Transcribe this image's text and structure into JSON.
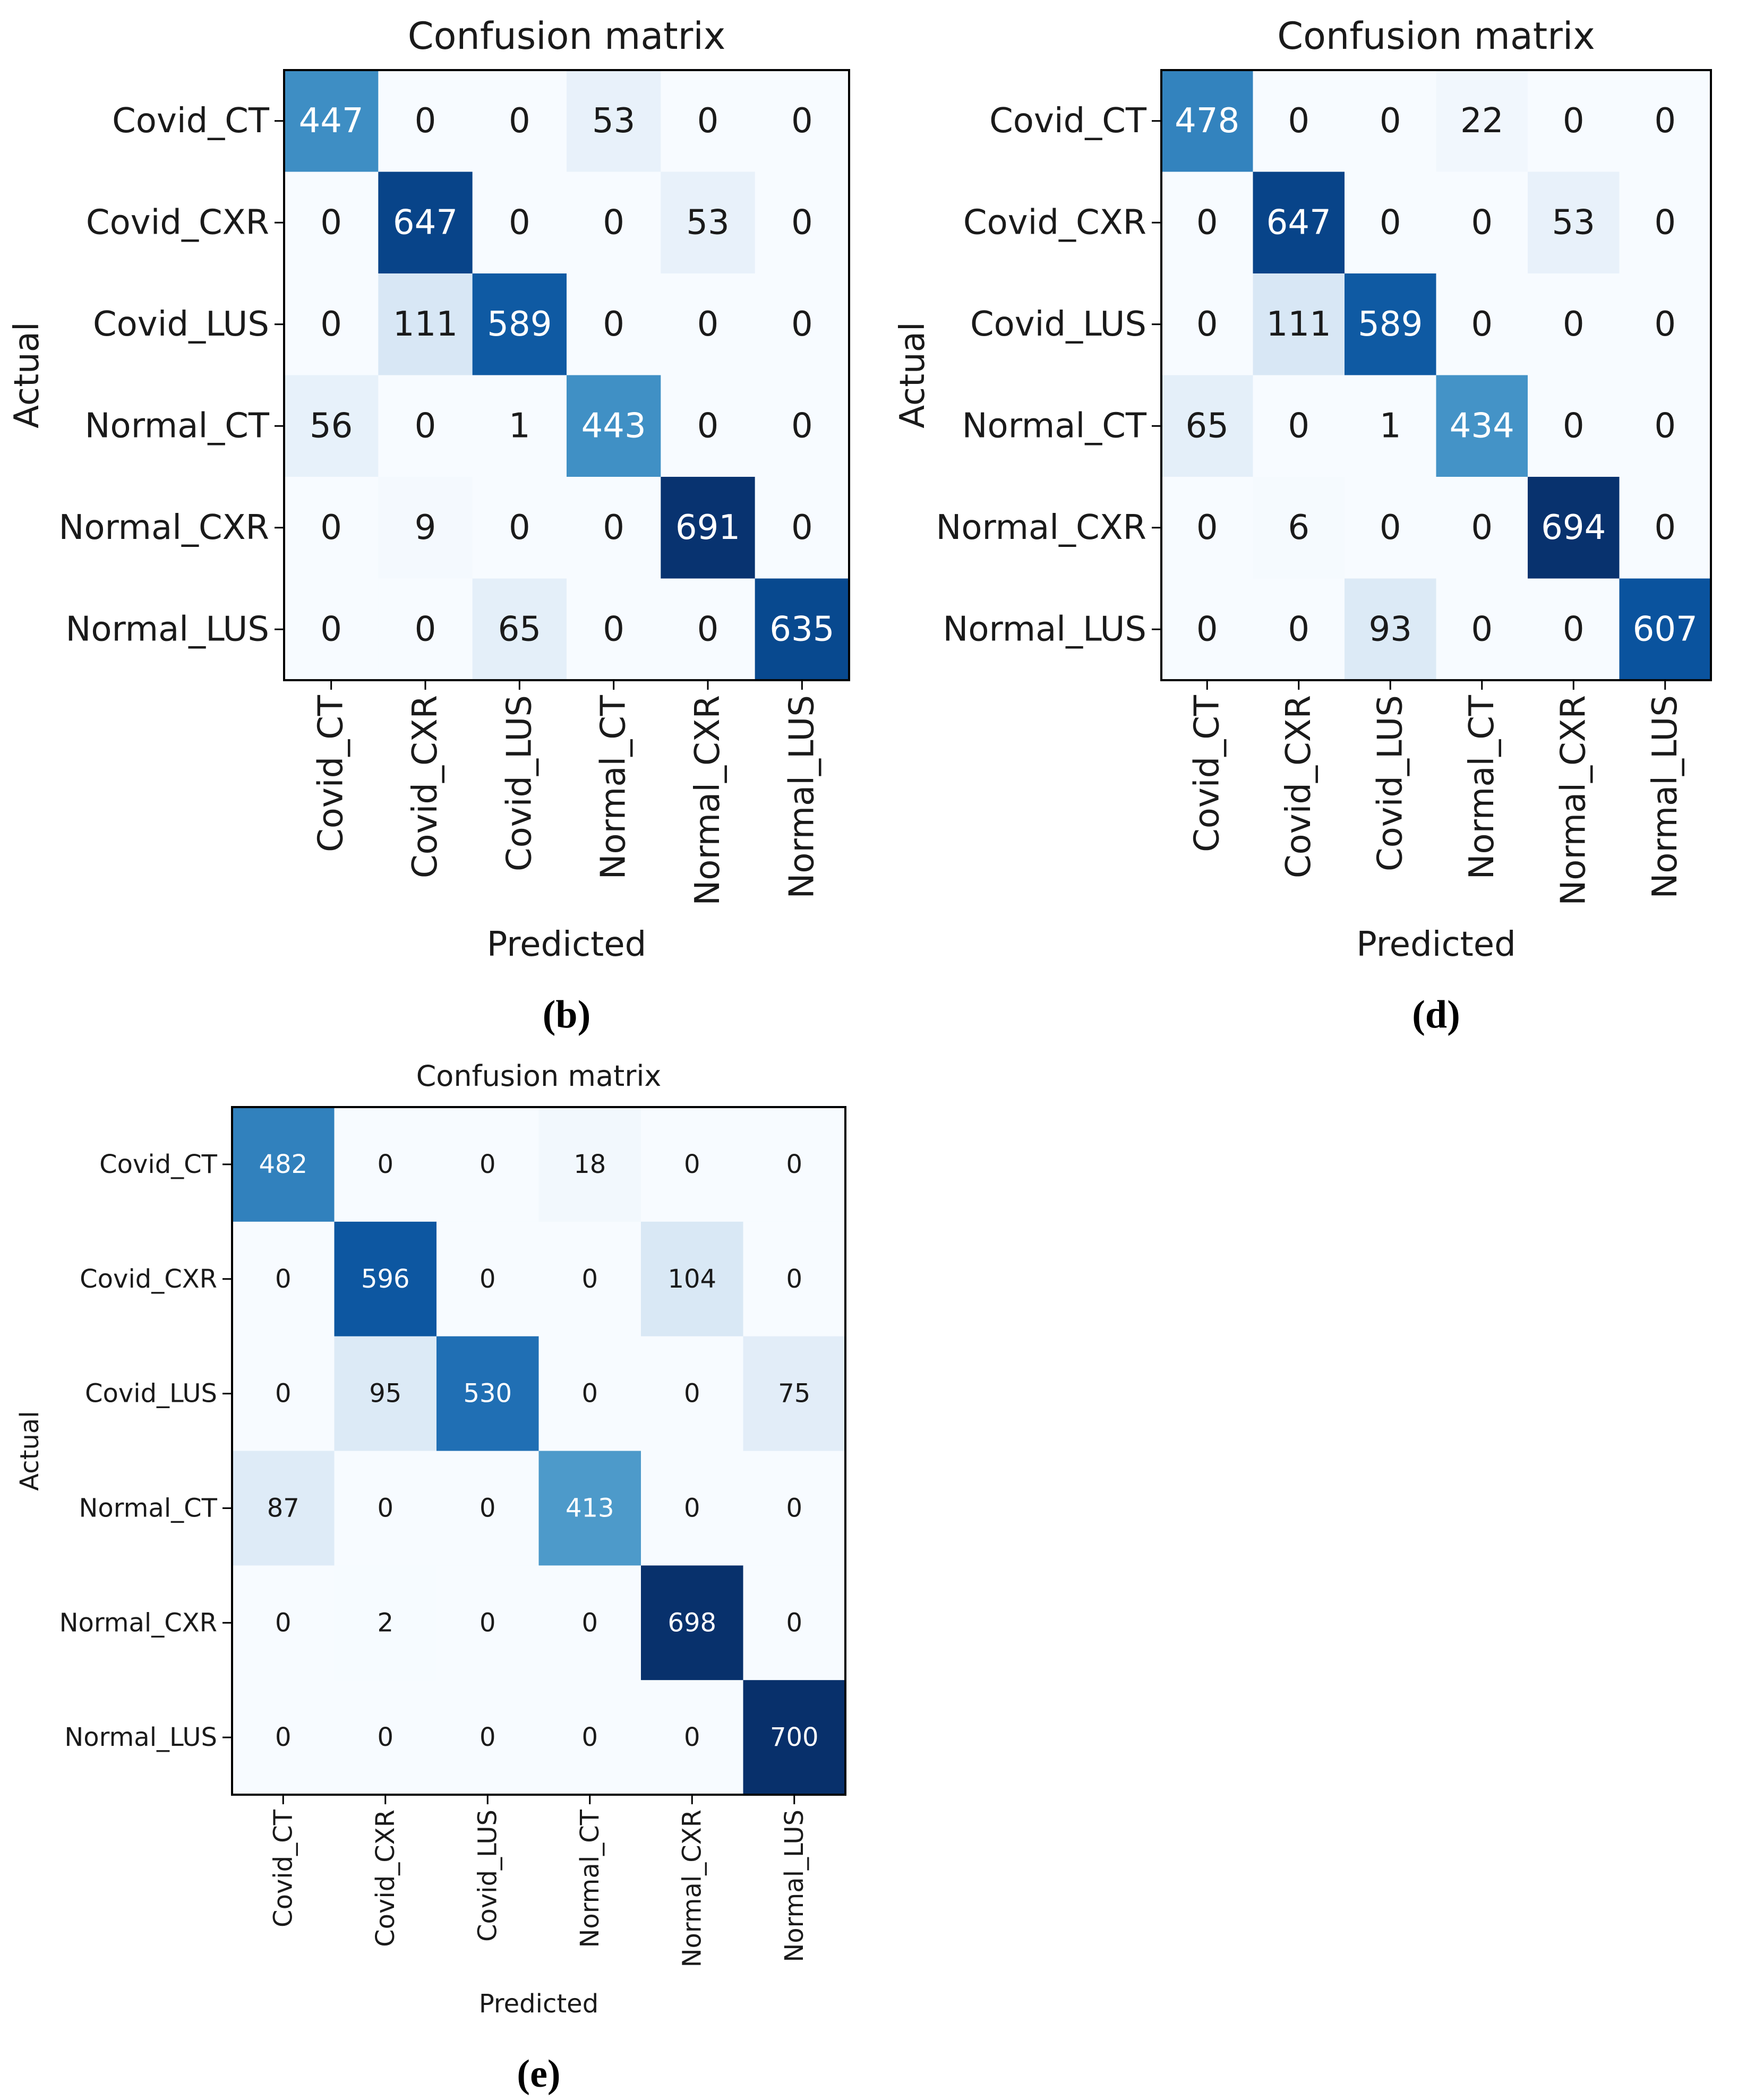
{
  "colors": {
    "scale": [
      "#f7fbff",
      "#deebf7",
      "#c6dbef",
      "#9ecae1",
      "#6baed6",
      "#4292c6",
      "#2171b5",
      "#08519c",
      "#08306b"
    ],
    "text_dark": "#1a1a1a",
    "text_light": "#ffffff",
    "frame": "#000000"
  },
  "chart_data": [
    {
      "type": "heatmap",
      "panel": "(b)",
      "title": "Confusion matrix",
      "xlabel": "Predicted",
      "ylabel": "Actual",
      "categories": [
        "Covid_CT",
        "Covid_CXR",
        "Covid_LUS",
        "Normal_CT",
        "Normal_CXR",
        "Normal_LUS"
      ],
      "matrix": [
        [
          447,
          0,
          0,
          53,
          0,
          0
        ],
        [
          0,
          647,
          0,
          0,
          53,
          0
        ],
        [
          0,
          111,
          589,
          0,
          0,
          0
        ],
        [
          56,
          0,
          1,
          443,
          0,
          0
        ],
        [
          0,
          9,
          0,
          0,
          691,
          0
        ],
        [
          0,
          0,
          65,
          0,
          0,
          635
        ]
      ],
      "vmax": 700
    },
    {
      "type": "heatmap",
      "panel": "(d)",
      "title": "Confusion matrix",
      "xlabel": "Predicted",
      "ylabel": "Actual",
      "categories": [
        "Covid_CT",
        "Covid_CXR",
        "Covid_LUS",
        "Normal_CT",
        "Normal_CXR",
        "Normal_LUS"
      ],
      "matrix": [
        [
          478,
          0,
          0,
          22,
          0,
          0
        ],
        [
          0,
          647,
          0,
          0,
          53,
          0
        ],
        [
          0,
          111,
          589,
          0,
          0,
          0
        ],
        [
          65,
          0,
          1,
          434,
          0,
          0
        ],
        [
          0,
          6,
          0,
          0,
          694,
          0
        ],
        [
          0,
          0,
          93,
          0,
          0,
          607
        ]
      ],
      "vmax": 700
    },
    {
      "type": "heatmap",
      "panel": "(e)",
      "title": "Confusion matrix",
      "xlabel": "Predicted",
      "ylabel": "Actual",
      "categories": [
        "Covid_CT",
        "Covid_CXR",
        "Covid_LUS",
        "Normal_CT",
        "Normal_CXR",
        "Normal_LUS"
      ],
      "matrix": [
        [
          482,
          0,
          0,
          18,
          0,
          0
        ],
        [
          0,
          596,
          0,
          0,
          104,
          0
        ],
        [
          0,
          95,
          530,
          0,
          0,
          75
        ],
        [
          87,
          0,
          0,
          413,
          0,
          0
        ],
        [
          0,
          2,
          0,
          0,
          698,
          0
        ],
        [
          0,
          0,
          0,
          0,
          0,
          700
        ]
      ],
      "vmax": 700
    }
  ]
}
